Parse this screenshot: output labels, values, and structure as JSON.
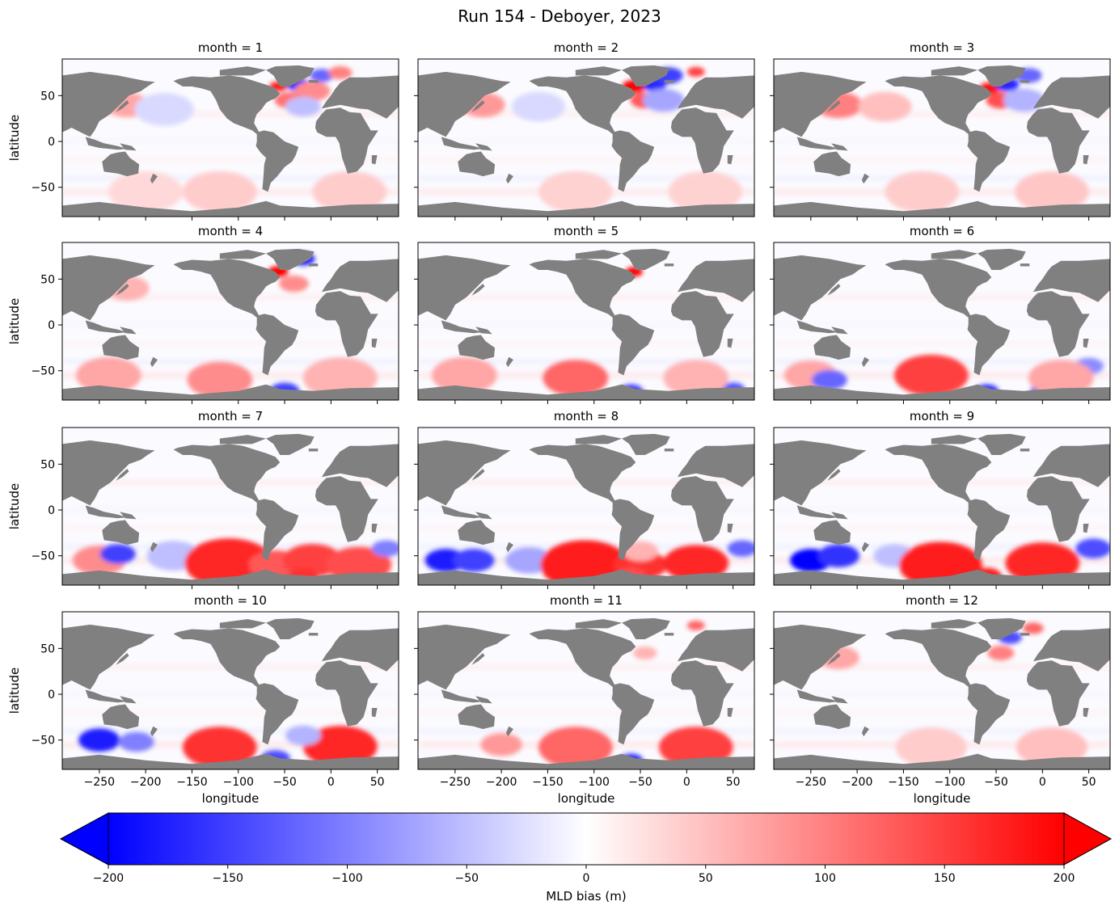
{
  "figure": {
    "title": "Run 154 - Deboyer, 2023"
  },
  "chart_data": {
    "type": "heatmap",
    "title": "Run 154 - Deboyer, 2023",
    "variable": "MLD bias (m)",
    "colormap": "bwr",
    "land_color": "#808080",
    "colormap_colors": [
      "#0000ff",
      "#ffffff",
      "#ff0000"
    ],
    "xlim": [
      -290,
      73
    ],
    "ylim": [
      -82,
      90
    ],
    "xlabel": "longitude",
    "ylabel": "latitude",
    "xticks": [
      -250,
      -200,
      -150,
      -100,
      -50,
      0,
      50
    ],
    "xtick_labels": [
      "−250",
      "−200",
      "−150",
      "−100",
      "−50",
      "0",
      "50"
    ],
    "yticks": [
      50,
      0,
      -50
    ],
    "ytick_labels": [
      "50",
      "0",
      "−50"
    ],
    "panels": [
      {
        "title": "month = 1",
        "month": 1,
        "features": [
          {
            "lon": -57,
            "lat": 60,
            "r": 6,
            "value": 180
          },
          {
            "lon": -35,
            "lat": 62,
            "r": 8,
            "value": -160
          },
          {
            "lon": -20,
            "lat": 55,
            "r": 12,
            "value": 90
          },
          {
            "lon": -45,
            "lat": 45,
            "r": 10,
            "value": 110
          },
          {
            "lon": -30,
            "lat": 38,
            "r": 12,
            "value": -50
          },
          {
            "lon": -10,
            "lat": 72,
            "r": 8,
            "value": -120
          },
          {
            "lon": 10,
            "lat": 75,
            "r": 8,
            "value": 100
          },
          {
            "lon": -220,
            "lat": 40,
            "r": 15,
            "value": 70
          },
          {
            "lon": -180,
            "lat": 35,
            "r": 20,
            "value": -30
          },
          {
            "lon": -120,
            "lat": -55,
            "r": 25,
            "value": 40
          },
          {
            "lon": -200,
            "lat": -55,
            "r": 25,
            "value": 30
          },
          {
            "lon": 20,
            "lat": -55,
            "r": 25,
            "value": 40
          }
        ]
      },
      {
        "title": "month = 2",
        "month": 2,
        "features": [
          {
            "lon": -57,
            "lat": 60,
            "r": 8,
            "value": 200
          },
          {
            "lon": -35,
            "lat": 62,
            "r": 8,
            "value": -170
          },
          {
            "lon": -20,
            "lat": 72,
            "r": 10,
            "value": -150
          },
          {
            "lon": -45,
            "lat": 45,
            "r": 10,
            "value": 130
          },
          {
            "lon": -25,
            "lat": 45,
            "r": 14,
            "value": -70
          },
          {
            "lon": 10,
            "lat": 76,
            "r": 6,
            "value": 150
          },
          {
            "lon": -220,
            "lat": 40,
            "r": 15,
            "value": 80
          },
          {
            "lon": -160,
            "lat": 38,
            "r": 18,
            "value": -30
          },
          {
            "lon": -120,
            "lat": -55,
            "r": 25,
            "value": 35
          },
          {
            "lon": 20,
            "lat": -55,
            "r": 25,
            "value": 35
          }
        ]
      },
      {
        "title": "month = 3",
        "month": 3,
        "features": [
          {
            "lon": -57,
            "lat": 58,
            "r": 7,
            "value": 190
          },
          {
            "lon": -38,
            "lat": 62,
            "r": 8,
            "value": -170
          },
          {
            "lon": -15,
            "lat": 72,
            "r": 9,
            "value": -120
          },
          {
            "lon": -45,
            "lat": 45,
            "r": 10,
            "value": 140
          },
          {
            "lon": -20,
            "lat": 45,
            "r": 14,
            "value": -60
          },
          {
            "lon": -220,
            "lat": 40,
            "r": 16,
            "value": 100
          },
          {
            "lon": -170,
            "lat": 38,
            "r": 18,
            "value": 50
          },
          {
            "lon": -130,
            "lat": -55,
            "r": 25,
            "value": 40
          },
          {
            "lon": 10,
            "lat": -55,
            "r": 25,
            "value": 45
          }
        ]
      },
      {
        "title": "month = 4",
        "month": 4,
        "features": [
          {
            "lon": -57,
            "lat": 58,
            "r": 7,
            "value": 200
          },
          {
            "lon": -30,
            "lat": 72,
            "r": 8,
            "value": -170
          },
          {
            "lon": -40,
            "lat": 45,
            "r": 10,
            "value": 90
          },
          {
            "lon": -220,
            "lat": 40,
            "r": 15,
            "value": 60
          },
          {
            "lon": -240,
            "lat": -55,
            "r": 22,
            "value": 70
          },
          {
            "lon": -120,
            "lat": -60,
            "r": 22,
            "value": 90
          },
          {
            "lon": -50,
            "lat": -72,
            "r": 10,
            "value": -150
          },
          {
            "lon": 10,
            "lat": -58,
            "r": 25,
            "value": 60
          }
        ]
      },
      {
        "title": "month = 5",
        "month": 5,
        "features": [
          {
            "lon": -57,
            "lat": 58,
            "r": 6,
            "value": 200
          },
          {
            "lon": -240,
            "lat": -55,
            "r": 22,
            "value": 70
          },
          {
            "lon": -120,
            "lat": -58,
            "r": 22,
            "value": 120
          },
          {
            "lon": -60,
            "lat": -72,
            "r": 8,
            "value": -150
          },
          {
            "lon": 50,
            "lat": -70,
            "r": 8,
            "value": -130
          },
          {
            "lon": 10,
            "lat": -58,
            "r": 22,
            "value": 60
          }
        ]
      },
      {
        "title": "month = 6",
        "month": 6,
        "features": [
          {
            "lon": -250,
            "lat": -55,
            "r": 18,
            "value": 70
          },
          {
            "lon": -230,
            "lat": -60,
            "r": 12,
            "value": -120
          },
          {
            "lon": -120,
            "lat": -55,
            "r": 25,
            "value": 150
          },
          {
            "lon": -60,
            "lat": -72,
            "r": 8,
            "value": -160
          },
          {
            "lon": 0,
            "lat": -72,
            "r": 8,
            "value": -150
          },
          {
            "lon": 50,
            "lat": -45,
            "r": 10,
            "value": -90
          },
          {
            "lon": 20,
            "lat": -58,
            "r": 22,
            "value": 70
          }
        ]
      },
      {
        "title": "month = 7",
        "month": 7,
        "features": [
          {
            "lon": -250,
            "lat": -55,
            "r": 18,
            "value": 90
          },
          {
            "lon": -230,
            "lat": -48,
            "r": 12,
            "value": -150
          },
          {
            "lon": -170,
            "lat": -50,
            "r": 18,
            "value": -50
          },
          {
            "lon": -110,
            "lat": -58,
            "r": 30,
            "value": 170
          },
          {
            "lon": -60,
            "lat": -60,
            "r": 18,
            "value": 130
          },
          {
            "lon": -20,
            "lat": -55,
            "r": 20,
            "value": 150
          },
          {
            "lon": 30,
            "lat": -60,
            "r": 22,
            "value": 140
          },
          {
            "lon": -30,
            "lat": -72,
            "r": 10,
            "value": 160
          },
          {
            "lon": 60,
            "lat": -42,
            "r": 10,
            "value": -100
          }
        ]
      },
      {
        "title": "month = 8",
        "month": 8,
        "features": [
          {
            "lon": -260,
            "lat": -55,
            "r": 14,
            "value": -180
          },
          {
            "lon": -230,
            "lat": -55,
            "r": 14,
            "value": -150
          },
          {
            "lon": -170,
            "lat": -55,
            "r": 16,
            "value": -70
          },
          {
            "lon": -110,
            "lat": -60,
            "r": 30,
            "value": 180
          },
          {
            "lon": -50,
            "lat": -60,
            "r": 18,
            "value": 160
          },
          {
            "lon": 10,
            "lat": -58,
            "r": 22,
            "value": 170
          },
          {
            "lon": -60,
            "lat": -72,
            "r": 10,
            "value": 140
          },
          {
            "lon": 60,
            "lat": -42,
            "r": 10,
            "value": -120
          },
          {
            "lon": -50,
            "lat": -45,
            "r": 12,
            "value": 60
          }
        ]
      },
      {
        "title": "month = 9",
        "month": 9,
        "features": [
          {
            "lon": -250,
            "lat": -55,
            "r": 14,
            "value": -200
          },
          {
            "lon": -220,
            "lat": -50,
            "r": 14,
            "value": -160
          },
          {
            "lon": -160,
            "lat": -50,
            "r": 14,
            "value": -50
          },
          {
            "lon": -110,
            "lat": -60,
            "r": 28,
            "value": 180
          },
          {
            "lon": -60,
            "lat": -72,
            "r": 10,
            "value": 180
          },
          {
            "lon": 0,
            "lat": -58,
            "r": 25,
            "value": 170
          },
          {
            "lon": 55,
            "lat": -42,
            "r": 12,
            "value": -140
          }
        ]
      },
      {
        "title": "month = 10",
        "month": 10,
        "features": [
          {
            "lon": -250,
            "lat": -50,
            "r": 14,
            "value": -180
          },
          {
            "lon": -210,
            "lat": -52,
            "r": 12,
            "value": -100
          },
          {
            "lon": -120,
            "lat": -58,
            "r": 25,
            "value": 160
          },
          {
            "lon": -60,
            "lat": -70,
            "r": 10,
            "value": -140
          },
          {
            "lon": 10,
            "lat": -57,
            "r": 25,
            "value": 170
          },
          {
            "lon": -30,
            "lat": -45,
            "r": 12,
            "value": -60
          }
        ]
      },
      {
        "title": "month = 11",
        "month": 11,
        "features": [
          {
            "lon": -200,
            "lat": -55,
            "r": 14,
            "value": 80
          },
          {
            "lon": -120,
            "lat": -58,
            "r": 25,
            "value": 120
          },
          {
            "lon": -60,
            "lat": -72,
            "r": 8,
            "value": -160
          },
          {
            "lon": 10,
            "lat": -58,
            "r": 25,
            "value": 150
          },
          {
            "lon": -45,
            "lat": 45,
            "r": 8,
            "value": 60
          },
          {
            "lon": 10,
            "lat": 75,
            "r": 6,
            "value": 120
          }
        ]
      },
      {
        "title": "month = 12",
        "month": 12,
        "features": [
          {
            "lon": -35,
            "lat": 62,
            "r": 8,
            "value": -140
          },
          {
            "lon": -45,
            "lat": 45,
            "r": 9,
            "value": 100
          },
          {
            "lon": -10,
            "lat": 72,
            "r": 7,
            "value": 120
          },
          {
            "lon": -220,
            "lat": 40,
            "r": 14,
            "value": 70
          },
          {
            "lon": -120,
            "lat": -58,
            "r": 24,
            "value": 40
          },
          {
            "lon": 10,
            "lat": -58,
            "r": 24,
            "value": 50
          }
        ]
      }
    ],
    "colorbar": {
      "label": "MLD bias (m)",
      "min": -200,
      "max": 200,
      "extend": "both",
      "ticks": [
        -200,
        -150,
        -100,
        -50,
        0,
        50,
        100,
        150,
        200
      ],
      "tick_labels": [
        "−200",
        "−150",
        "−100",
        "−50",
        "0",
        "50",
        "100",
        "150",
        "200"
      ]
    }
  }
}
